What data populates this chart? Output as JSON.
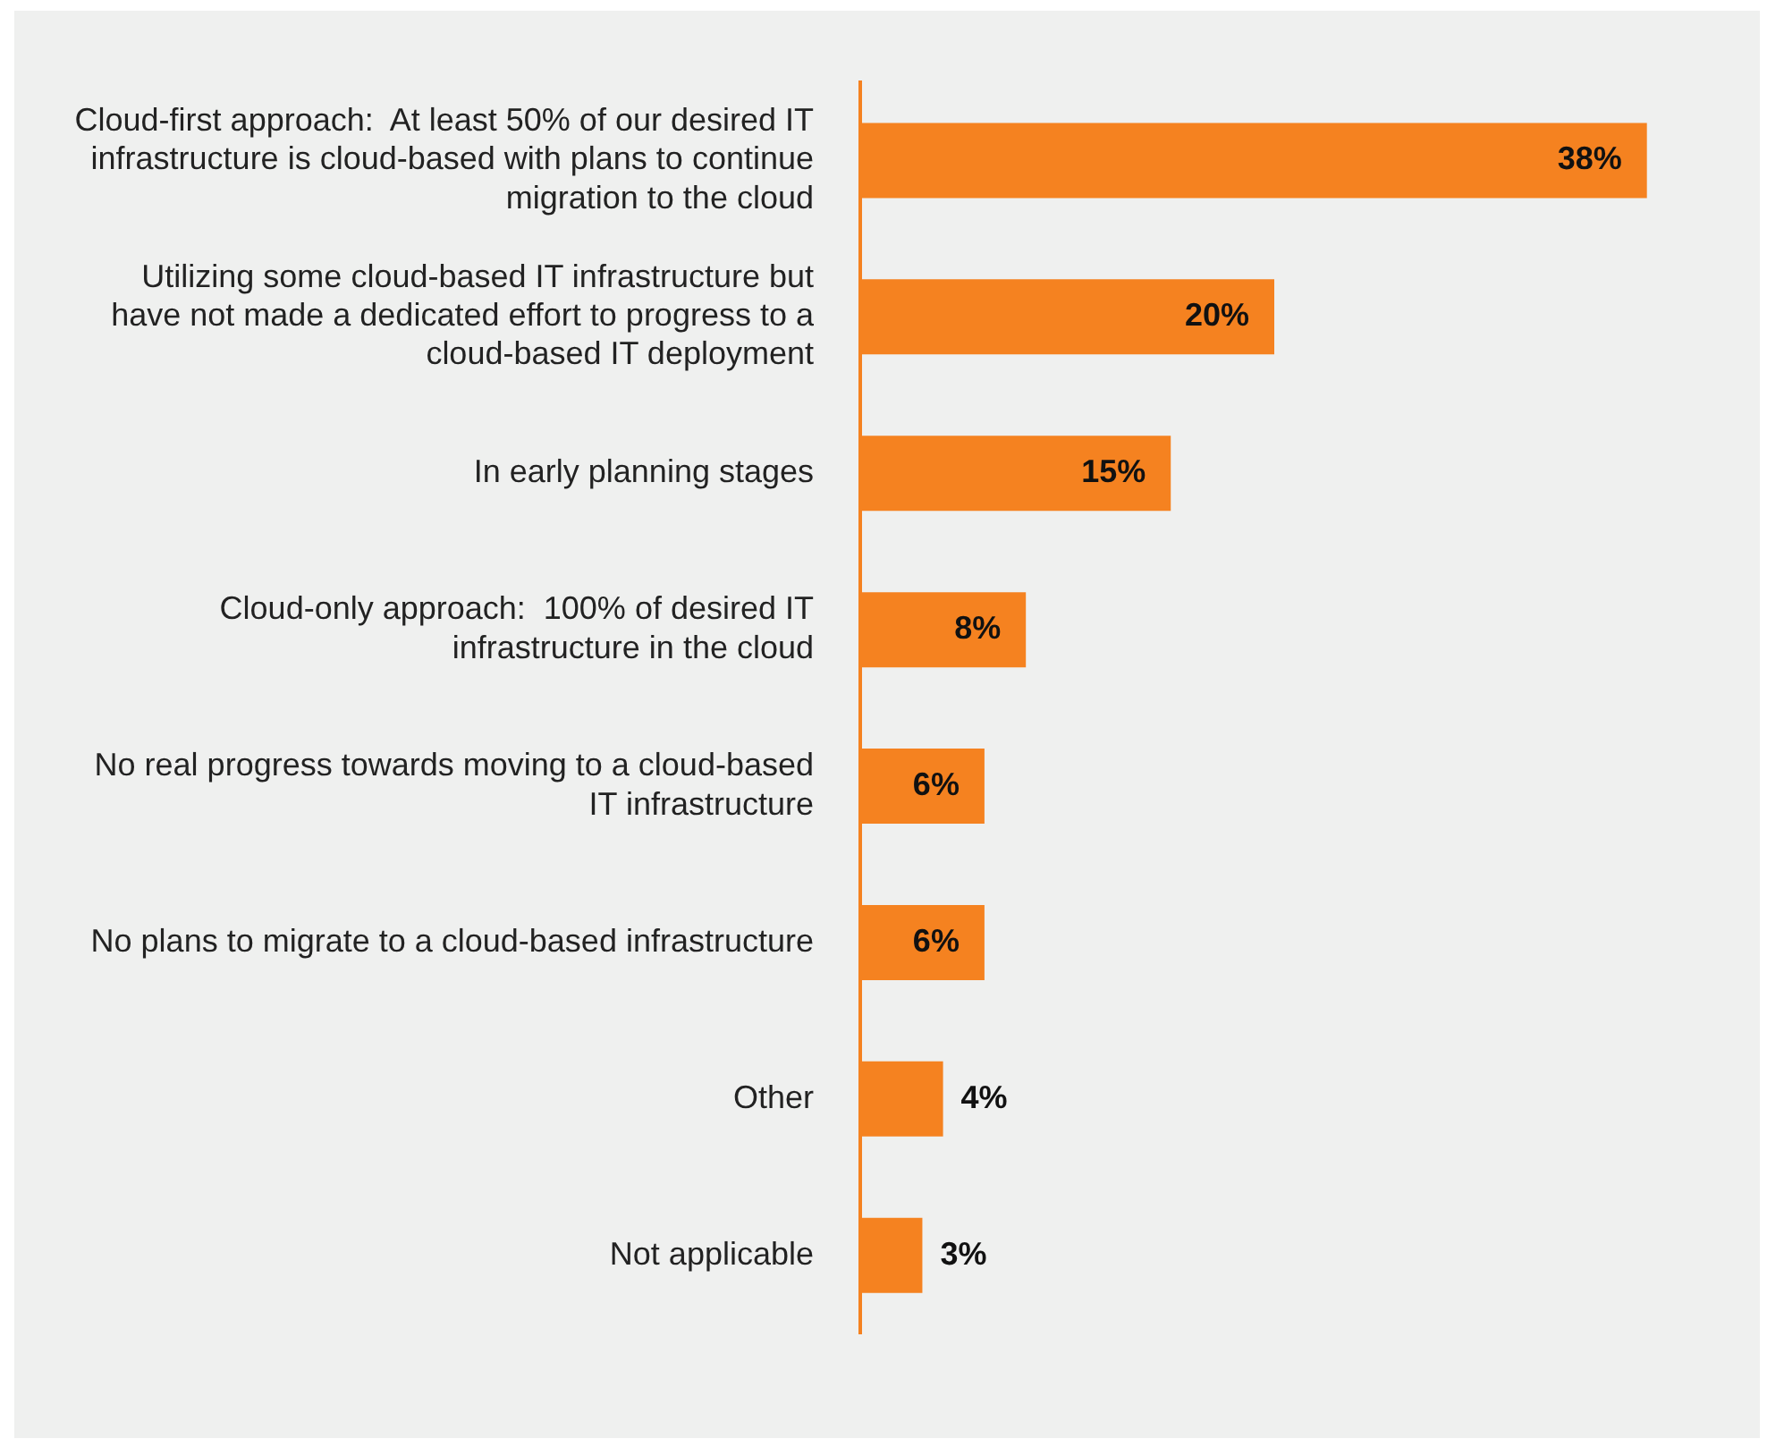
{
  "chart_data": {
    "type": "bar",
    "orientation": "horizontal",
    "categories": [
      "Cloud-first approach:  At least 50% of our desired IT infrastructure is cloud-based with plans to continue migration to the cloud",
      "Utilizing some cloud-based IT infrastructure but have not made a dedicated effort to progress to a cloud-based IT deployment",
      "In early planning stages",
      "Cloud-only approach:  100% of desired IT infrastructure in the cloud",
      "No real progress towards moving to a cloud-based IT infrastructure",
      "No plans to migrate to a cloud-based infrastructure",
      "Other",
      "Not applicable"
    ],
    "values": [
      38,
      20,
      15,
      8,
      6,
      6,
      4,
      3
    ],
    "value_labels": [
      "38%",
      "20%",
      "15%",
      "8%",
      "6%",
      "6%",
      "4%",
      "3%"
    ],
    "color": "#f58220",
    "grid": false,
    "legend": false,
    "tick_labels": "y"
  }
}
